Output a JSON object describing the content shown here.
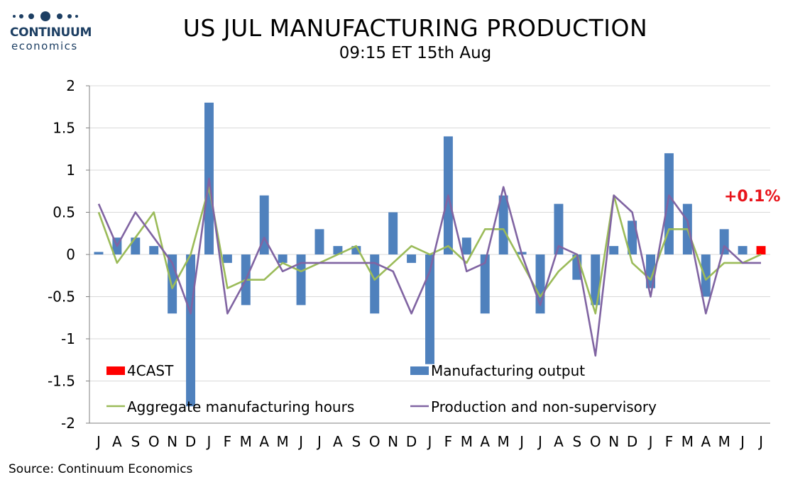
{
  "brand": {
    "name": "CONTINUUM",
    "sub": "economics",
    "color": "#1d3f63"
  },
  "source": "Source: Continuum Economics",
  "chart_data": {
    "type": "bar",
    "title": "US JUL MANUFACTURING PRODUCTION",
    "subtitle": "09:15 ET 15th Aug",
    "ylim": [
      -2,
      2
    ],
    "yticks": [
      2,
      1.5,
      1,
      0.5,
      0,
      -0.5,
      -1,
      -1.5,
      -2
    ],
    "ytick_labels": [
      "2",
      "1.5",
      "1",
      "0.5",
      "0",
      "-0.5",
      "-1",
      "-1.5",
      "-2"
    ],
    "grid": true,
    "categories": [
      "J",
      "A",
      "S",
      "O",
      "N",
      "D",
      "J",
      "F",
      "M",
      "A",
      "M",
      "J",
      "J",
      "A",
      "S",
      "O",
      "N",
      "D",
      "J",
      "F",
      "M",
      "A",
      "M",
      "J",
      "J",
      "A",
      "S",
      "O",
      "N",
      "D",
      "J",
      "F",
      "M",
      "A",
      "M",
      "J",
      "J"
    ],
    "annotation": "+0.1%",
    "series": [
      {
        "name": "Manufacturing output",
        "kind": "bar",
        "color": "#4f81bd",
        "values": [
          0.03,
          0.2,
          0.2,
          0.1,
          -0.7,
          -1.8,
          1.8,
          -0.1,
          -0.6,
          0.7,
          -0.1,
          -0.6,
          0.3,
          0.1,
          0.1,
          -0.7,
          0.5,
          -0.1,
          -1.3,
          1.4,
          0.2,
          -0.7,
          0.7,
          0.03,
          -0.7,
          0.6,
          -0.3,
          -0.6,
          0.1,
          0.4,
          -0.4,
          1.2,
          0.6,
          -0.5,
          0.3,
          0.1,
          null
        ]
      },
      {
        "name": "4CAST",
        "kind": "bar",
        "color": "#ff0000",
        "values": [
          null,
          null,
          null,
          null,
          null,
          null,
          null,
          null,
          null,
          null,
          null,
          null,
          null,
          null,
          null,
          null,
          null,
          null,
          null,
          null,
          null,
          null,
          null,
          null,
          null,
          null,
          null,
          null,
          null,
          null,
          null,
          null,
          null,
          null,
          null,
          null,
          0.1
        ]
      },
      {
        "name": "Aggregate manufacturing hours",
        "kind": "line",
        "color": "#9bbb59",
        "values": [
          0.5,
          -0.1,
          0.2,
          0.5,
          -0.4,
          0.0,
          0.8,
          -0.4,
          -0.3,
          -0.3,
          -0.1,
          -0.2,
          -0.1,
          0.0,
          0.1,
          -0.3,
          -0.1,
          0.1,
          0.0,
          0.1,
          -0.1,
          0.3,
          0.3,
          -0.1,
          -0.5,
          -0.2,
          0.0,
          -0.7,
          0.7,
          -0.1,
          -0.3,
          0.3,
          0.3,
          -0.3,
          -0.1,
          -0.1,
          0.0
        ]
      },
      {
        "name": "Production and non-supervisory",
        "kind": "line",
        "color": "#8064a2",
        "values": [
          0.6,
          0.1,
          0.5,
          0.2,
          -0.1,
          -0.7,
          0.9,
          -0.7,
          -0.3,
          0.2,
          -0.2,
          -0.1,
          -0.1,
          -0.1,
          -0.1,
          -0.1,
          -0.2,
          -0.7,
          -0.2,
          0.7,
          -0.2,
          -0.1,
          0.8,
          0.0,
          -0.6,
          0.1,
          0.0,
          -1.2,
          0.7,
          0.5,
          -0.5,
          0.7,
          0.4,
          -0.7,
          0.1,
          -0.1,
          -0.1
        ]
      }
    ],
    "legend": [
      "4CAST",
      "Manufacturing output",
      "Aggregate manufacturing hours",
      "Production and non-supervisory"
    ],
    "legend_placement": "bottom-inside"
  }
}
